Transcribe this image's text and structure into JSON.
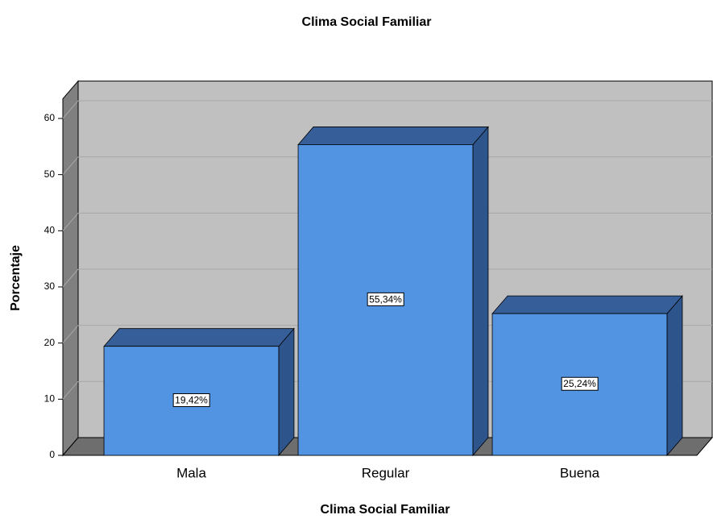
{
  "chart_data": {
    "type": "bar3d",
    "title": "Clima Social Familiar",
    "xlabel": "Clima Social Familiar",
    "ylabel": "Porcentaje",
    "categories": [
      "Mala",
      "Regular",
      "Buena"
    ],
    "values": [
      19.42,
      55.34,
      25.24
    ],
    "value_labels": [
      "19,42%",
      "55,34%",
      "25,24%"
    ],
    "color": "#5294e2",
    "ylim": [
      0,
      63.5
    ],
    "yticks": [
      0,
      10,
      20,
      30,
      40,
      50,
      60
    ],
    "grid": true
  }
}
